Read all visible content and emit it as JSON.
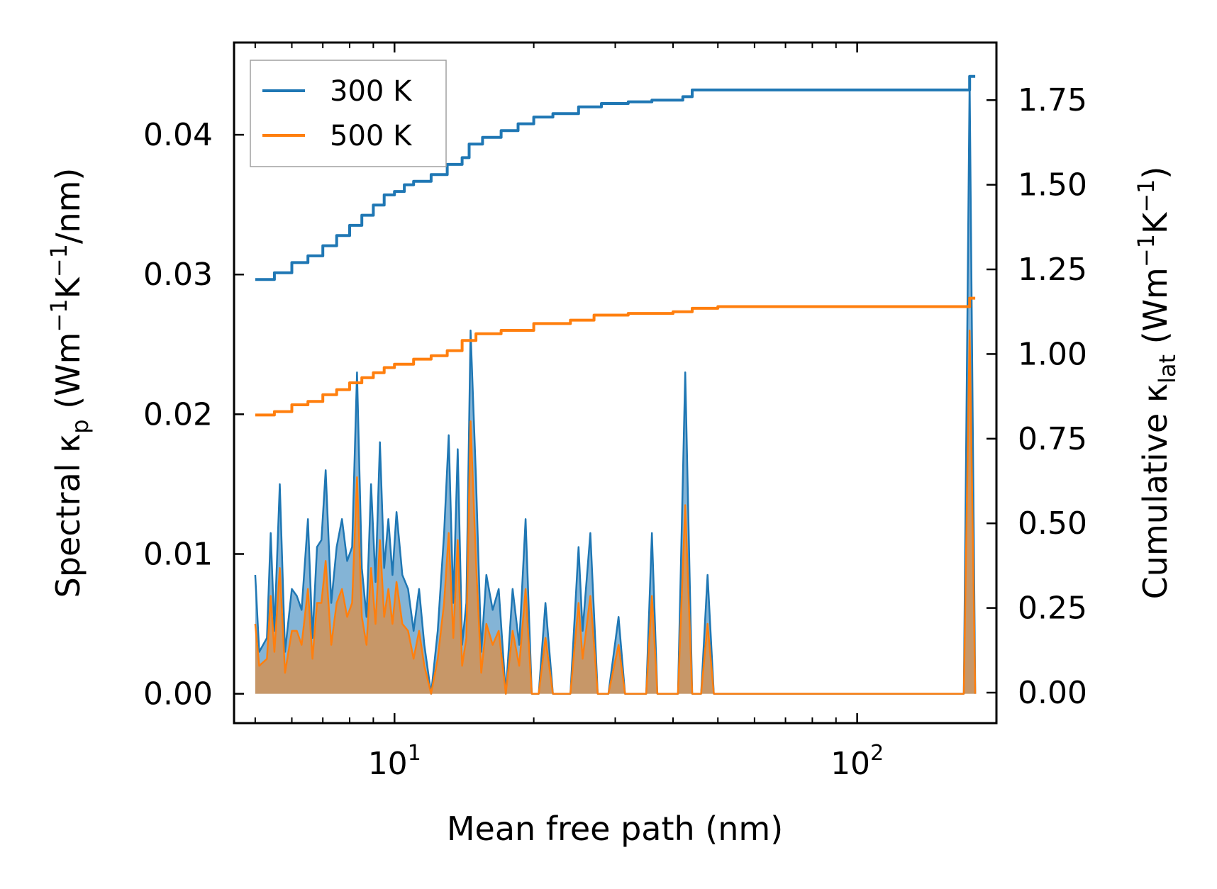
{
  "chart_data": {
    "type": "line",
    "xlabel": "Mean free path (nm)",
    "xscale": "log",
    "xlim": [
      4.5,
      200
    ],
    "x_ticks": [
      {
        "value": 10,
        "base": "10",
        "exp": "1"
      },
      {
        "value": 100,
        "base": "10",
        "exp": "2"
      }
    ],
    "y_left": {
      "label_parts": [
        "Spectral κ",
        "p",
        " (Wm",
        "−1",
        "K",
        "−1",
        "/nm)"
      ],
      "lim": [
        -0.0021,
        0.0466
      ],
      "ticks": [
        "0.00",
        "0.01",
        "0.02",
        "0.03",
        "0.04"
      ]
    },
    "y_right": {
      "label_parts": [
        "Cumulative κ",
        "lat",
        " (Wm",
        "−1",
        "K",
        "−1",
        ")"
      ],
      "lim": [
        -0.09,
        1.92
      ],
      "ticks": [
        "0.00",
        "0.25",
        "0.50",
        "0.75",
        "1.00",
        "1.25",
        "1.50",
        "1.75"
      ]
    },
    "legend": {
      "position": "upper-left",
      "entries": [
        "300 K",
        "500 K"
      ]
    },
    "series": [
      {
        "name": "300 K",
        "color": "#1f77b4",
        "cumulative": [
          [
            5.0,
            1.22
          ],
          [
            5.5,
            1.24
          ],
          [
            6.0,
            1.27
          ],
          [
            6.5,
            1.29
          ],
          [
            7.0,
            1.32
          ],
          [
            7.5,
            1.35
          ],
          [
            8.0,
            1.38
          ],
          [
            8.5,
            1.41
          ],
          [
            9.0,
            1.44
          ],
          [
            9.5,
            1.47
          ],
          [
            10.0,
            1.48
          ],
          [
            10.5,
            1.5
          ],
          [
            11.0,
            1.51
          ],
          [
            12.0,
            1.53
          ],
          [
            13.0,
            1.56
          ],
          [
            14.0,
            1.58
          ],
          [
            14.5,
            1.62
          ],
          [
            15.5,
            1.64
          ],
          [
            17.0,
            1.66
          ],
          [
            18.5,
            1.68
          ],
          [
            20.0,
            1.7
          ],
          [
            22.0,
            1.71
          ],
          [
            25.0,
            1.73
          ],
          [
            28.0,
            1.74
          ],
          [
            32.0,
            1.745
          ],
          [
            36.0,
            1.75
          ],
          [
            42.0,
            1.76
          ],
          [
            44.0,
            1.78
          ],
          [
            50.0,
            1.78
          ],
          [
            100.0,
            1.78
          ],
          [
            170.0,
            1.78
          ],
          [
            175.0,
            1.82
          ],
          [
            180.0,
            1.82
          ]
        ],
        "spectral": [
          [
            5.0,
            0.0085
          ],
          [
            5.1,
            0.003
          ],
          [
            5.3,
            0.004
          ],
          [
            5.4,
            0.0115
          ],
          [
            5.5,
            0.0045
          ],
          [
            5.65,
            0.015
          ],
          [
            5.8,
            0.003
          ],
          [
            6.0,
            0.0075
          ],
          [
            6.15,
            0.007
          ],
          [
            6.3,
            0.006
          ],
          [
            6.5,
            0.0125
          ],
          [
            6.65,
            0.004
          ],
          [
            6.8,
            0.0105
          ],
          [
            6.95,
            0.011
          ],
          [
            7.1,
            0.016
          ],
          [
            7.3,
            0.0065
          ],
          [
            7.5,
            0.0105
          ],
          [
            7.7,
            0.0125
          ],
          [
            7.9,
            0.0095
          ],
          [
            8.1,
            0.0105
          ],
          [
            8.3,
            0.023
          ],
          [
            8.5,
            0.009
          ],
          [
            8.7,
            0.0055
          ],
          [
            8.9,
            0.015
          ],
          [
            9.1,
            0.008
          ],
          [
            9.3,
            0.018
          ],
          [
            9.5,
            0.009
          ],
          [
            9.7,
            0.0125
          ],
          [
            9.9,
            0.0085
          ],
          [
            10.1,
            0.013
          ],
          [
            10.4,
            0.0085
          ],
          [
            10.7,
            0.0075
          ],
          [
            11.0,
            0.0045
          ],
          [
            11.3,
            0.0075
          ],
          [
            11.6,
            0.0035
          ],
          [
            12.0,
            0.0
          ],
          [
            12.4,
            0.0045
          ],
          [
            12.8,
            0.0115
          ],
          [
            13.1,
            0.0185
          ],
          [
            13.4,
            0.0065
          ],
          [
            13.7,
            0.0175
          ],
          [
            14.0,
            0.0035
          ],
          [
            14.3,
            0.0065
          ],
          [
            14.6,
            0.026
          ],
          [
            15.0,
            0.0155
          ],
          [
            15.4,
            0.003
          ],
          [
            15.8,
            0.0085
          ],
          [
            16.3,
            0.006
          ],
          [
            16.8,
            0.0075
          ],
          [
            17.4,
            0.0
          ],
          [
            18.0,
            0.0075
          ],
          [
            18.6,
            0.0035
          ],
          [
            19.2,
            0.0125
          ],
          [
            19.8,
            0.0
          ],
          [
            20.5,
            0.0
          ],
          [
            21.2,
            0.0065
          ],
          [
            22.0,
            0.0
          ],
          [
            23.0,
            0.0
          ],
          [
            24.0,
            0.0
          ],
          [
            25.0,
            0.0105
          ],
          [
            25.5,
            0.0045
          ],
          [
            26.5,
            0.0115
          ],
          [
            27.5,
            0.0
          ],
          [
            29.0,
            0.0
          ],
          [
            30.5,
            0.0055
          ],
          [
            31.5,
            0.0
          ],
          [
            33.0,
            0.0
          ],
          [
            35.0,
            0.0
          ],
          [
            36.0,
            0.0115
          ],
          [
            37.0,
            0.0
          ],
          [
            41.0,
            0.0
          ],
          [
            42.5,
            0.023
          ],
          [
            44.0,
            0.0
          ],
          [
            46.0,
            0.0
          ],
          [
            47.5,
            0.0085
          ],
          [
            49.0,
            0.0
          ],
          [
            100.0,
            0.0
          ],
          [
            170.0,
            0.0
          ],
          [
            175.0,
            0.044
          ],
          [
            180.0,
            0.0
          ]
        ]
      },
      {
        "name": "500 K",
        "color": "#ff7f0e",
        "cumulative": [
          [
            5.0,
            0.82
          ],
          [
            5.5,
            0.83
          ],
          [
            6.0,
            0.85
          ],
          [
            6.5,
            0.86
          ],
          [
            7.0,
            0.88
          ],
          [
            7.5,
            0.895
          ],
          [
            8.0,
            0.915
          ],
          [
            8.5,
            0.93
          ],
          [
            9.0,
            0.945
          ],
          [
            9.5,
            0.96
          ],
          [
            10.0,
            0.97
          ],
          [
            11.0,
            0.985
          ],
          [
            12.0,
            0.995
          ],
          [
            13.0,
            1.01
          ],
          [
            14.0,
            1.04
          ],
          [
            15.0,
            1.06
          ],
          [
            17.0,
            1.07
          ],
          [
            20.0,
            1.09
          ],
          [
            24.0,
            1.1
          ],
          [
            27.0,
            1.115
          ],
          [
            32.0,
            1.12
          ],
          [
            40.0,
            1.125
          ],
          [
            44.0,
            1.135
          ],
          [
            50.0,
            1.14
          ],
          [
            100.0,
            1.14
          ],
          [
            170.0,
            1.14
          ],
          [
            175.0,
            1.165
          ],
          [
            180.0,
            1.165
          ]
        ],
        "spectral": [
          [
            5.0,
            0.005
          ],
          [
            5.1,
            0.002
          ],
          [
            5.3,
            0.0025
          ],
          [
            5.4,
            0.007
          ],
          [
            5.5,
            0.003
          ],
          [
            5.65,
            0.009
          ],
          [
            5.8,
            0.0015
          ],
          [
            6.0,
            0.0045
          ],
          [
            6.15,
            0.0045
          ],
          [
            6.3,
            0.0035
          ],
          [
            6.5,
            0.0075
          ],
          [
            6.65,
            0.0025
          ],
          [
            6.8,
            0.0065
          ],
          [
            6.95,
            0.0065
          ],
          [
            7.1,
            0.0095
          ],
          [
            7.3,
            0.0035
          ],
          [
            7.5,
            0.0065
          ],
          [
            7.7,
            0.0075
          ],
          [
            7.9,
            0.0055
          ],
          [
            8.1,
            0.0065
          ],
          [
            8.3,
            0.0155
          ],
          [
            8.5,
            0.0055
          ],
          [
            8.7,
            0.0035
          ],
          [
            8.9,
            0.009
          ],
          [
            9.1,
            0.005
          ],
          [
            9.3,
            0.011
          ],
          [
            9.5,
            0.0055
          ],
          [
            9.7,
            0.0075
          ],
          [
            9.9,
            0.005
          ],
          [
            10.1,
            0.008
          ],
          [
            10.4,
            0.005
          ],
          [
            10.7,
            0.0045
          ],
          [
            11.0,
            0.0025
          ],
          [
            11.3,
            0.0045
          ],
          [
            11.6,
            0.002
          ],
          [
            12.0,
            0.0
          ],
          [
            12.4,
            0.0025
          ],
          [
            12.8,
            0.0065
          ],
          [
            13.1,
            0.0115
          ],
          [
            13.4,
            0.004
          ],
          [
            13.7,
            0.011
          ],
          [
            14.0,
            0.002
          ],
          [
            14.3,
            0.004
          ],
          [
            14.6,
            0.0195
          ],
          [
            15.0,
            0.0095
          ],
          [
            15.4,
            0.0015
          ],
          [
            15.8,
            0.005
          ],
          [
            16.3,
            0.0035
          ],
          [
            16.8,
            0.0045
          ],
          [
            17.4,
            0.0
          ],
          [
            18.0,
            0.0045
          ],
          [
            18.6,
            0.002
          ],
          [
            19.2,
            0.0075
          ],
          [
            19.8,
            0.0
          ],
          [
            20.5,
            0.0
          ],
          [
            21.2,
            0.004
          ],
          [
            22.0,
            0.0
          ],
          [
            23.0,
            0.0
          ],
          [
            24.0,
            0.0
          ],
          [
            25.0,
            0.0065
          ],
          [
            25.5,
            0.0025
          ],
          [
            26.5,
            0.007
          ],
          [
            27.5,
            0.0
          ],
          [
            29.0,
            0.0
          ],
          [
            30.5,
            0.0035
          ],
          [
            31.5,
            0.0
          ],
          [
            33.0,
            0.0
          ],
          [
            35.0,
            0.0
          ],
          [
            36.0,
            0.007
          ],
          [
            37.0,
            0.0
          ],
          [
            41.0,
            0.0
          ],
          [
            42.5,
            0.0135
          ],
          [
            44.0,
            0.0
          ],
          [
            46.0,
            0.0
          ],
          [
            47.5,
            0.005
          ],
          [
            49.0,
            0.0
          ],
          [
            100.0,
            0.0
          ],
          [
            170.0,
            0.0
          ],
          [
            175.0,
            0.026
          ],
          [
            180.0,
            0.0
          ]
        ]
      }
    ]
  }
}
